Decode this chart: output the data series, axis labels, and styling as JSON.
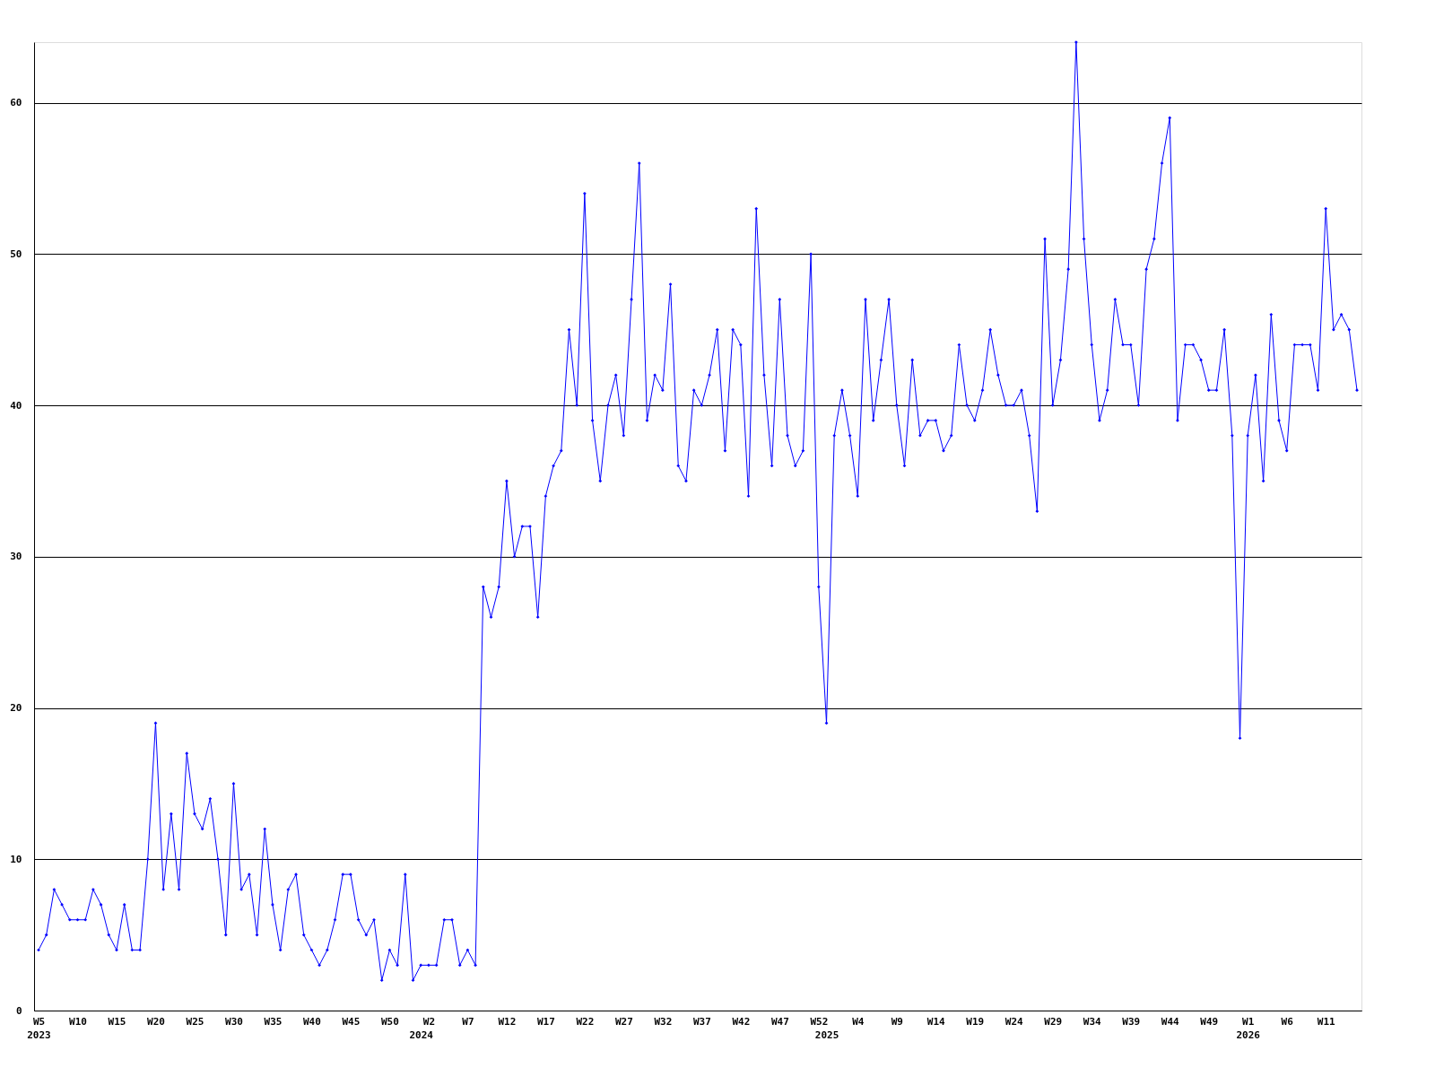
{
  "chart_data": {
    "type": "line",
    "categories": [
      "W5\n2023",
      null,
      null,
      null,
      null,
      "W10",
      null,
      null,
      null,
      null,
      "W15",
      null,
      null,
      null,
      null,
      "W20",
      null,
      null,
      null,
      null,
      "W25",
      null,
      null,
      null,
      null,
      "W30",
      null,
      null,
      null,
      null,
      "W35",
      null,
      null,
      null,
      null,
      "W40",
      null,
      null,
      null,
      null,
      "W45",
      null,
      null,
      null,
      null,
      "W50",
      null,
      null,
      null,
      "\n2024",
      "W2",
      null,
      null,
      null,
      null,
      "W7",
      null,
      null,
      null,
      null,
      "W12",
      null,
      null,
      null,
      null,
      "W17",
      null,
      null,
      null,
      null,
      "W22",
      null,
      null,
      null,
      null,
      "W27",
      null,
      null,
      null,
      null,
      "W32",
      null,
      null,
      null,
      null,
      "W37",
      null,
      null,
      null,
      null,
      "W42",
      null,
      null,
      null,
      null,
      "W47",
      null,
      null,
      null,
      null,
      "W52",
      "\n2025",
      null,
      null,
      null,
      "W4",
      null,
      null,
      null,
      null,
      "W9",
      null,
      null,
      null,
      null,
      "W14",
      null,
      null,
      null,
      null,
      "W19",
      null,
      null,
      null,
      null,
      "W24",
      null,
      null,
      null,
      null,
      "W29",
      null,
      null,
      null,
      null,
      "W34",
      null,
      null,
      null,
      null,
      "W39",
      null,
      null,
      null,
      null,
      "W44",
      null,
      null,
      null,
      null,
      "W49",
      null,
      null,
      null,
      null,
      "W1\n2026",
      null,
      null,
      null,
      null,
      "W6",
      null,
      null,
      null,
      null,
      "W11",
      null,
      null,
      null,
      null
    ],
    "series": [
      {
        "color": "#0000ff",
        "values": [
          4,
          5,
          8,
          7,
          6,
          6,
          6,
          8,
          7,
          5,
          4,
          7,
          4,
          4,
          10,
          19,
          8,
          13,
          8,
          17,
          13,
          12,
          14,
          10,
          5,
          15,
          8,
          9,
          5,
          12,
          7,
          4,
          8,
          9,
          5,
          4,
          3,
          4,
          6,
          9,
          9,
          6,
          5,
          6,
          2,
          4,
          3,
          9,
          2,
          3,
          3,
          3,
          6,
          6,
          3,
          4,
          3,
          28,
          26,
          28,
          35,
          30,
          32,
          32,
          26,
          34,
          36,
          37,
          45,
          40,
          54,
          39,
          35,
          40,
          42,
          38,
          47,
          56,
          39,
          42,
          41,
          48,
          36,
          35,
          41,
          40,
          42,
          45,
          37,
          45,
          44,
          34,
          53,
          42,
          36,
          47,
          38,
          36,
          37,
          50,
          28,
          19,
          38,
          41,
          38,
          34,
          47,
          39,
          43,
          47,
          40,
          36,
          43,
          38,
          39,
          39,
          37,
          38,
          44,
          40,
          39,
          41,
          45,
          42,
          40,
          40,
          41,
          38,
          33,
          51,
          40,
          43,
          49,
          64,
          51,
          44,
          39,
          41,
          47,
          44,
          44,
          40,
          49,
          51,
          56,
          59,
          39,
          44,
          44,
          43,
          41,
          41,
          45,
          38,
          18,
          38,
          42,
          35,
          46,
          39,
          37,
          44,
          44,
          44,
          41,
          53,
          45,
          46,
          45,
          41
        ]
      }
    ],
    "ylim": [
      0,
      64
    ],
    "yticks": [
      0,
      10,
      20,
      30,
      40,
      50,
      60
    ],
    "grid": "y",
    "marker": "diamond",
    "line_style": "solid"
  }
}
